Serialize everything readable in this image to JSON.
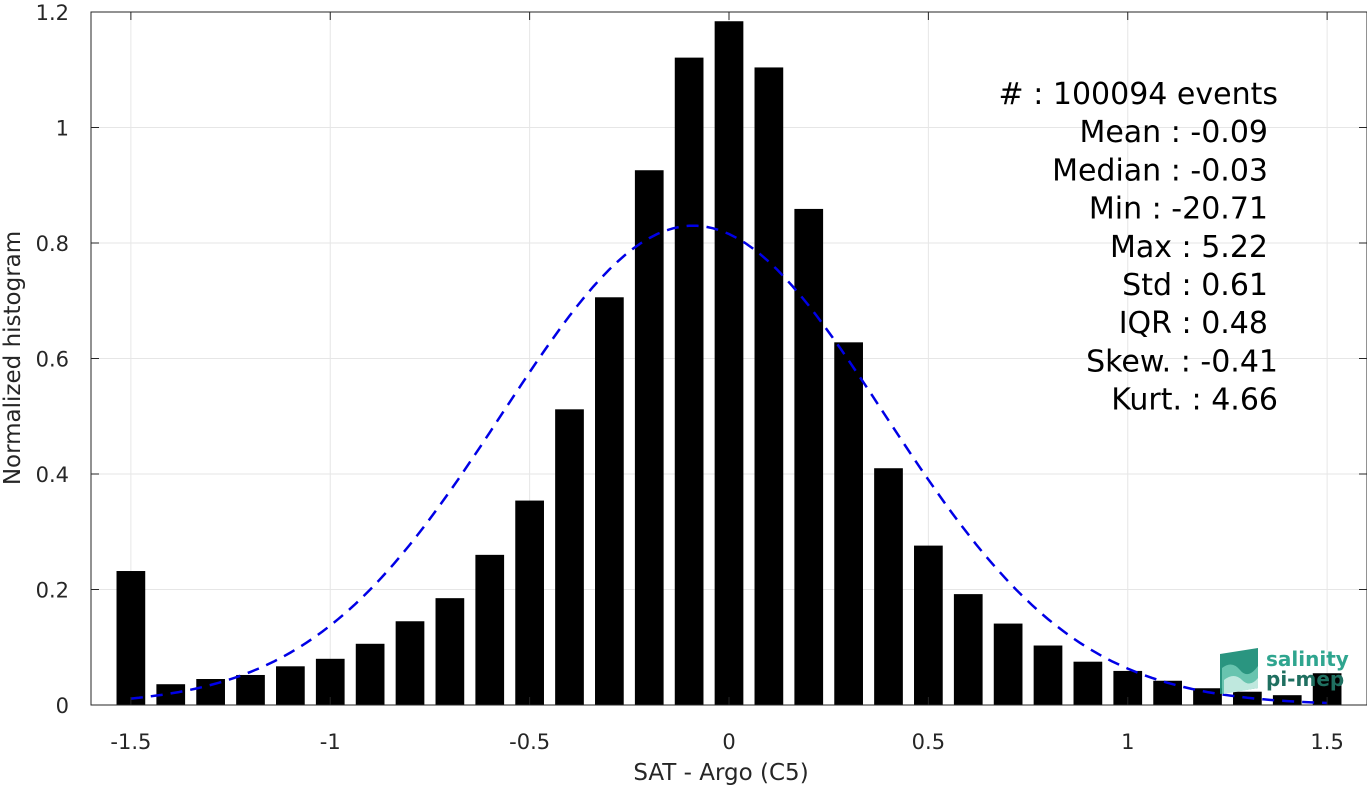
{
  "chart_data": {
    "type": "bar",
    "title": "",
    "xlabel": "SAT - Argo (C5)",
    "ylabel": "Normalized histogram",
    "xlim": [
      -1.6,
      1.6
    ],
    "ylim": [
      0,
      1.2
    ],
    "grid": true,
    "x_ticks": [
      "-1.5",
      "-1",
      "-0.5",
      "0",
      "0.5",
      "1",
      "1.5"
    ],
    "y_ticks": [
      "0",
      "0.2",
      "0.4",
      "0.6",
      "0.8",
      "1",
      "1.2"
    ],
    "bin_width": 0.1,
    "series": [
      {
        "x": [
          -1.5,
          -1.4,
          -1.3,
          -1.2,
          -1.1,
          -1.0,
          -0.9,
          -0.8,
          -0.7,
          -0.6,
          -0.5,
          -0.4,
          -0.3,
          -0.2,
          -0.1,
          0.0,
          0.1,
          0.2,
          0.3,
          0.4,
          0.5,
          0.6,
          0.7,
          0.8,
          0.9,
          1.0,
          1.1,
          1.2,
          1.3,
          1.4,
          1.5
        ],
        "values": [
          0.232,
          0.036,
          0.045,
          0.052,
          0.067,
          0.08,
          0.106,
          0.145,
          0.185,
          0.26,
          0.354,
          0.512,
          0.706,
          0.926,
          1.121,
          1.184,
          1.104,
          0.859,
          0.628,
          0.41,
          0.276,
          0.192,
          0.141,
          0.103,
          0.075,
          0.059,
          0.042,
          0.029,
          0.023,
          0.017,
          0.055
        ],
        "color": "#000000"
      }
    ],
    "fit": {
      "kind": "normal",
      "mean": -0.09,
      "std": 0.48,
      "peak": 0.83,
      "style": "dashed",
      "color": "#0000e6"
    },
    "stats": [
      {
        "label": "#  : 100094 events"
      },
      {
        "label": "Mean : -0.09"
      },
      {
        "label": "Median : -0.03"
      },
      {
        "label": "Min : -20.71"
      },
      {
        "label": "Max : 5.22"
      },
      {
        "label": "Std : 0.61"
      },
      {
        "label": "IQR : 0.48"
      },
      {
        "label": "Skew. : -0.41"
      },
      {
        "label": "Kurt. : 4.66"
      }
    ]
  },
  "logo": {
    "line1": "salinity",
    "line2": "pi-mep",
    "icon": "salinity-wave-icon",
    "color": "#2fa58f"
  }
}
